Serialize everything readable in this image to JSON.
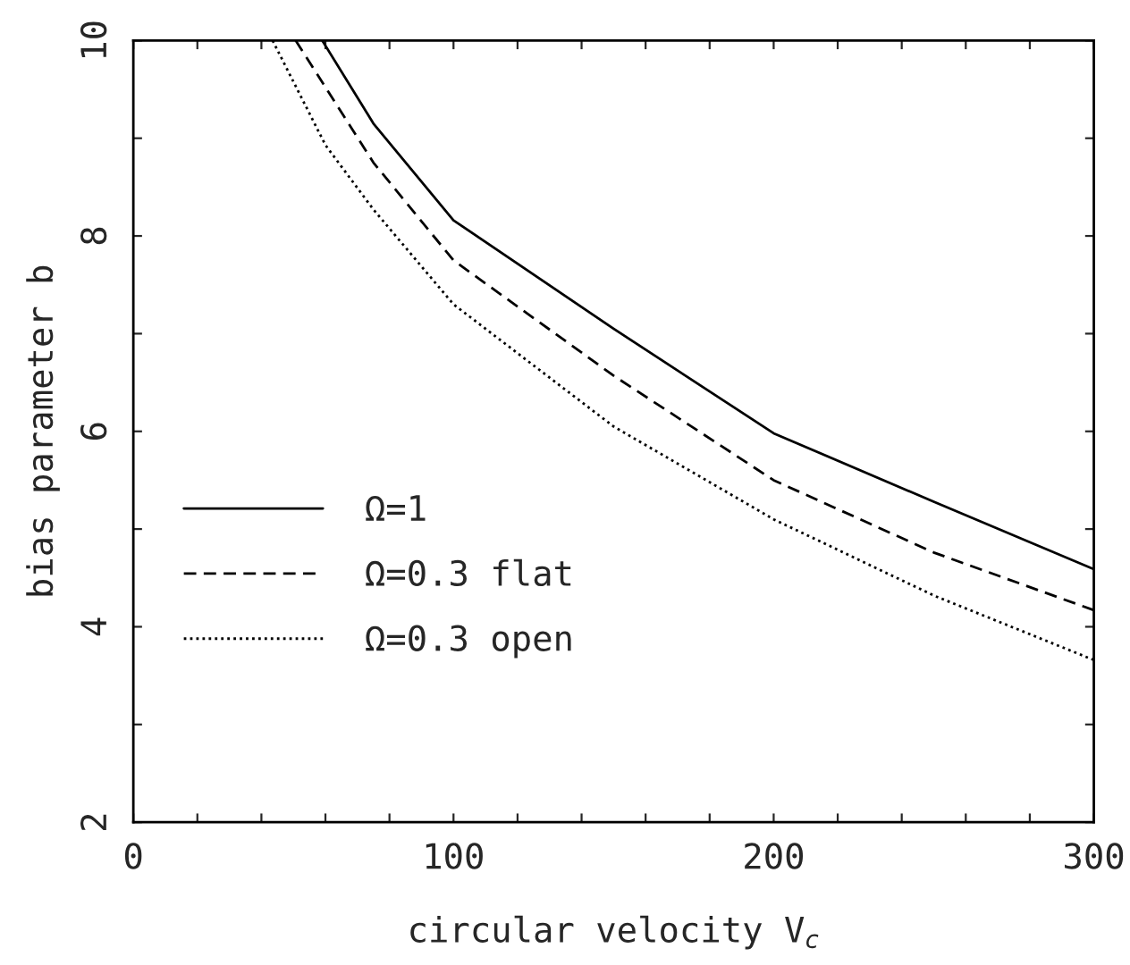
{
  "chart_data": {
    "type": "line",
    "xlabel": "circular velocity V$_{c}$",
    "ylabel": "bias parameter b",
    "xlim": [
      0,
      300
    ],
    "ylim": [
      2,
      10
    ],
    "xticks": [
      0,
      {
        "value": 20,
        "label": null
      },
      {
        "value": 40,
        "label": null
      },
      {
        "value": 60,
        "label": null
      },
      {
        "value": 80,
        "label": null
      },
      100,
      {
        "value": 120,
        "label": null
      },
      {
        "value": 140,
        "label": null
      },
      {
        "value": 160,
        "label": null
      },
      {
        "value": 180,
        "label": null
      },
      200,
      {
        "value": 220,
        "label": null
      },
      {
        "value": 240,
        "label": null
      },
      {
        "value": 260,
        "label": null
      },
      {
        "value": 280,
        "label": null
      },
      300
    ],
    "yticks": [
      2,
      {
        "value": 3,
        "label": null
      },
      4,
      {
        "value": 5,
        "label": null
      },
      6,
      {
        "value": 7,
        "label": null
      },
      8,
      {
        "value": 9,
        "label": null
      },
      10
    ],
    "grid": false,
    "legend": "bottom left",
    "marker": "none",
    "series": [
      {
        "name": "Ω=1",
        "color": "#000000",
        "line_style": "solid",
        "x": [
          59,
          75,
          100,
          150,
          200,
          250,
          300
        ],
        "values": [
          10,
          9.15,
          8.16,
          7.05,
          5.98,
          5.28,
          4.59
        ]
      },
      {
        "name": "Ω=0.3 flat",
        "color": "#000000",
        "line_style": "dashed",
        "x": [
          50.7,
          75,
          100,
          150,
          200,
          250,
          300
        ],
        "values": [
          10,
          8.75,
          7.75,
          6.57,
          5.5,
          4.76,
          4.17
        ]
      },
      {
        "name": "Ω=0.3 open",
        "color": "#000000",
        "line_style": "dotted",
        "x": [
          43.5,
          60,
          75,
          100,
          150,
          200,
          250,
          300
        ],
        "values": [
          10,
          8.93,
          8.27,
          7.3,
          6.05,
          5.1,
          4.32,
          3.66
        ]
      }
    ]
  }
}
